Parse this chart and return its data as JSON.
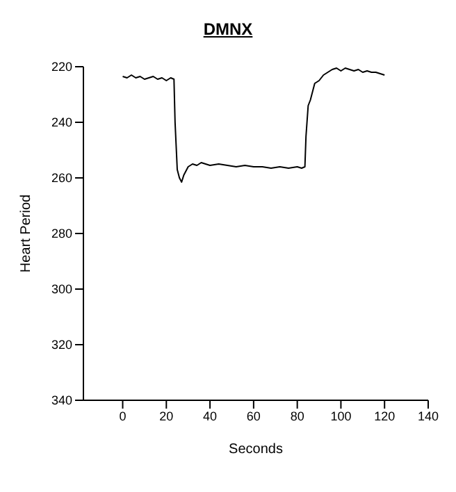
{
  "chart_data": {
    "type": "line",
    "title": "DMNX",
    "xlabel": "Seconds",
    "ylabel": "Heart Period",
    "xlim": [
      -18,
      140
    ],
    "xticks": [
      0,
      20,
      40,
      60,
      80,
      100,
      120,
      140
    ],
    "ylim": [
      340,
      220
    ],
    "yticks": [
      220,
      240,
      260,
      280,
      300,
      320,
      340
    ],
    "x": [
      0,
      2,
      4,
      6,
      8,
      10,
      12,
      14,
      16,
      18,
      20,
      22,
      23.5,
      24,
      25,
      26,
      27,
      28,
      30,
      32,
      34,
      36,
      38,
      40,
      44,
      48,
      52,
      56,
      60,
      64,
      68,
      72,
      76,
      80,
      82,
      83.5,
      84,
      85,
      86,
      87,
      88,
      90,
      92,
      94,
      96,
      98,
      100,
      102,
      104,
      106,
      108,
      110,
      112,
      114,
      116,
      118,
      120
    ],
    "series": [
      {
        "color": "#000000",
        "values": [
          223.5,
          224,
          223,
          224,
          223.5,
          224.5,
          224,
          223.5,
          224.5,
          224,
          225,
          224,
          224.5,
          240,
          257,
          260,
          261.5,
          259,
          256,
          255,
          255.5,
          254.5,
          255,
          255.5,
          255,
          255.5,
          256,
          255.5,
          256,
          256,
          256.5,
          256,
          256.5,
          256,
          256.5,
          256,
          245,
          234,
          232,
          229,
          226,
          225,
          223,
          222,
          221,
          220.5,
          221.5,
          220.5,
          221,
          221.5,
          221,
          222,
          221.5,
          222,
          222,
          222.5,
          223
        ]
      }
    ],
    "line_style": "solid",
    "marker": "none"
  }
}
